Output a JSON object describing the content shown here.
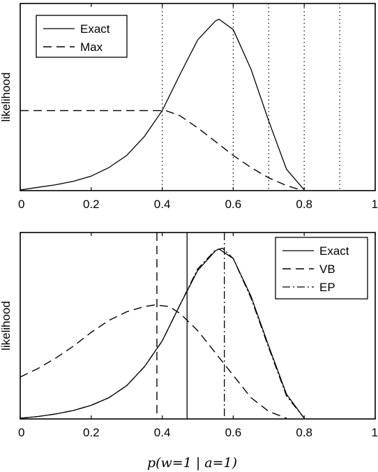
{
  "chart_data": [
    {
      "type": "line",
      "ylabel": "likelihood",
      "xlabel": "",
      "xlim": [
        0,
        1
      ],
      "xticks": [
        "0",
        "0.2",
        "0.4",
        "0.6",
        "0.8",
        "1"
      ],
      "legend": {
        "placement": "top-left",
        "entries": [
          "Exact",
          "Max"
        ]
      },
      "vlines_dotted": [
        0.4,
        0.6,
        0.7,
        0.8,
        0.9
      ],
      "series": [
        {
          "name": "Exact",
          "style": "solid",
          "x": [
            0,
            0.05,
            0.1,
            0.15,
            0.2,
            0.25,
            0.3,
            0.35,
            0.4,
            0.45,
            0.5,
            0.55,
            0.56,
            0.6,
            0.65,
            0.7,
            0.75,
            0.8
          ],
          "y": [
            0,
            0.015,
            0.03,
            0.05,
            0.08,
            0.13,
            0.2,
            0.31,
            0.46,
            0.67,
            0.87,
            0.98,
            0.99,
            0.93,
            0.7,
            0.4,
            0.12,
            0
          ]
        },
        {
          "name": "Max",
          "style": "dashed",
          "x": [
            0,
            0.41,
            0.45,
            0.5,
            0.55,
            0.6,
            0.65,
            0.7,
            0.75,
            0.79
          ],
          "y": [
            0.46,
            0.46,
            0.43,
            0.36,
            0.28,
            0.2,
            0.13,
            0.07,
            0.025,
            0
          ]
        }
      ]
    },
    {
      "type": "line",
      "ylabel": "likelihood",
      "xlabel": "p(w=1 | a=1)",
      "xlim": [
        0,
        1
      ],
      "xticks": [
        "0",
        "0.2",
        "0.4",
        "0.6",
        "0.8",
        "1"
      ],
      "legend": {
        "placement": "top-right",
        "entries": [
          "Exact",
          "VB",
          "EP"
        ]
      },
      "vlines": [
        {
          "x": 0.47,
          "style": "solid"
        },
        {
          "x": 0.385,
          "style": "dashed"
        },
        {
          "x": 0.575,
          "style": "dashdot"
        }
      ],
      "series": [
        {
          "name": "Exact",
          "style": "solid",
          "x": [
            0,
            0.05,
            0.1,
            0.15,
            0.2,
            0.25,
            0.3,
            0.35,
            0.4,
            0.45,
            0.5,
            0.55,
            0.56,
            0.6,
            0.65,
            0.7,
            0.75,
            0.8
          ],
          "y": [
            0,
            0.01,
            0.025,
            0.045,
            0.075,
            0.12,
            0.19,
            0.3,
            0.45,
            0.66,
            0.86,
            0.975,
            0.985,
            0.93,
            0.71,
            0.42,
            0.14,
            0
          ]
        },
        {
          "name": "VB",
          "style": "dashed",
          "x": [
            0,
            0.05,
            0.1,
            0.15,
            0.2,
            0.25,
            0.3,
            0.35,
            0.38,
            0.42,
            0.45,
            0.5,
            0.55,
            0.6,
            0.65,
            0.7,
            0.75
          ],
          "y": [
            0.24,
            0.29,
            0.35,
            0.42,
            0.5,
            0.57,
            0.62,
            0.65,
            0.66,
            0.65,
            0.61,
            0.51,
            0.38,
            0.25,
            0.12,
            0.04,
            0
          ]
        },
        {
          "name": "EP",
          "style": "dashdot",
          "x": [
            0,
            0.05,
            0.1,
            0.15,
            0.2,
            0.25,
            0.3,
            0.35,
            0.4,
            0.45,
            0.5,
            0.55,
            0.57,
            0.6,
            0.65,
            0.7,
            0.75,
            0.8
          ],
          "y": [
            0,
            0.01,
            0.025,
            0.045,
            0.075,
            0.12,
            0.19,
            0.3,
            0.45,
            0.66,
            0.87,
            0.98,
            0.99,
            0.93,
            0.7,
            0.41,
            0.13,
            0
          ]
        }
      ]
    }
  ]
}
